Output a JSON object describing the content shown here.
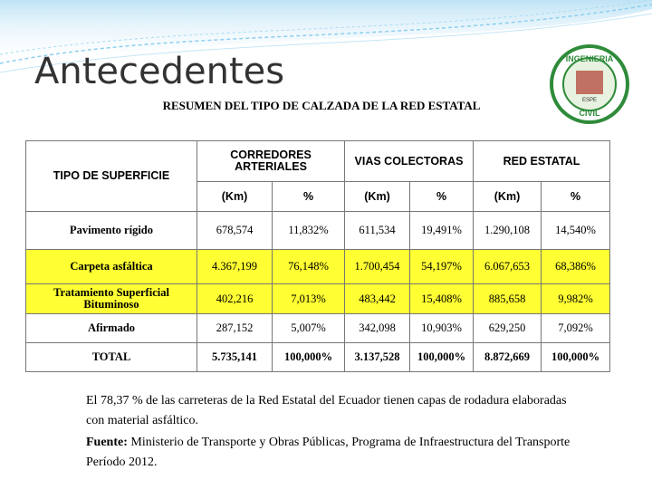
{
  "slide": {
    "title": "Antecedentes"
  },
  "logo": {
    "top": "INGENIERIA",
    "bottom": "CIVIL",
    "mark": "ESPE"
  },
  "table": {
    "title": "RESUMEN DEL TIPO DE CALZADA DE LA RED ESTATAL",
    "groups": [
      "TIPO DE SUPERFICIE",
      "CORREDORES ARTERIALES",
      "VIAS COLECTORAS",
      "RED ESTATAL"
    ],
    "units": [
      "(Km)",
      "%",
      "(Km)",
      "%",
      "(Km)",
      "%"
    ],
    "rows": [
      [
        "Pavimento rígido",
        "678,574",
        "11,832%",
        "611,534",
        "19,491%",
        "1.290,108",
        "14,540%"
      ],
      [
        "Carpeta asfáltica",
        "4.367,199",
        "76,148%",
        "1.700,454",
        "54,197%",
        "6.067,653",
        "68,386%"
      ],
      [
        "Tratamiento Superficial Bituminoso",
        "402,216",
        "7,013%",
        "483,442",
        "15,408%",
        "885,658",
        "9,982%"
      ],
      [
        "Afirmado",
        "287,152",
        "5,007%",
        "342,098",
        "10,903%",
        "629,250",
        "7,092%"
      ],
      [
        "TOTAL",
        "5.735,141",
        "100,000%",
        "3.137,528",
        "100,000%",
        "8.872,669",
        "100,000%"
      ]
    ]
  },
  "note": {
    "text": "El 78,37 % de las carreteras de la Red Estatal del Ecuador tienen capas de rodadura elaboradas con material asfáltico.",
    "source_label": "Fuente:",
    "source": "Ministerio de Transporte y Obras Públicas, Programa de Infraestructura del Transporte Período 2012."
  }
}
